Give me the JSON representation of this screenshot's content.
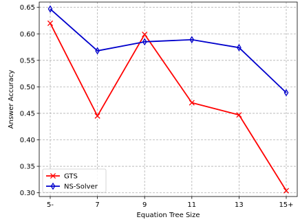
{
  "chart_data": {
    "type": "line",
    "title": "",
    "xlabel": "Equation Tree Size",
    "ylabel": "Answer Accuracy",
    "categories": [
      "5-",
      "7",
      "9",
      "11",
      "13",
      "15+"
    ],
    "ylim": [
      0.293,
      0.66
    ],
    "yticks": [
      "0.30",
      "0.35",
      "0.40",
      "0.45",
      "0.50",
      "0.55",
      "0.60",
      "0.65"
    ],
    "grid": true,
    "grid_style": "dashed",
    "legend_position": "lower-left",
    "series": [
      {
        "name": "GTS",
        "values": [
          0.62,
          0.445,
          0.599,
          0.47,
          0.447,
          0.304
        ],
        "color": "#ff0000",
        "marker": "x"
      },
      {
        "name": "NS-Solver",
        "values": [
          0.647,
          0.568,
          0.585,
          0.589,
          0.574,
          0.489
        ],
        "color": "#0000cc",
        "marker": "thin_diamond"
      }
    ]
  }
}
